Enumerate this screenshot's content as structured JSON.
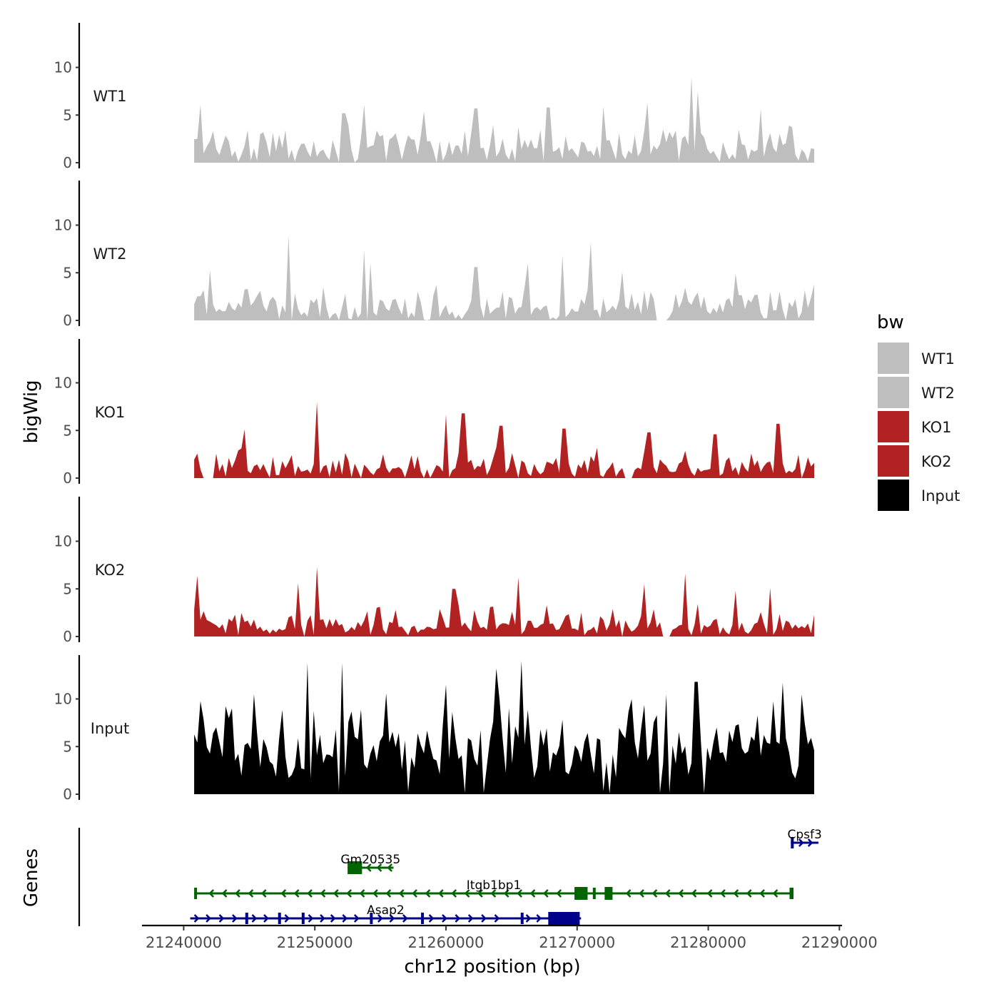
{
  "chart_data": {
    "type": "area",
    "title": "",
    "xlabel": "chr12 position (bp)",
    "ylabel": "bigWig",
    "genes_label": "Genes",
    "xlim": [
      21238400,
      21290200
    ],
    "x_ticks": [
      21240000,
      21250000,
      21260000,
      21270000,
      21280000,
      21290000
    ],
    "x_tick_labels": [
      "21240000",
      "21250000",
      "21260000",
      "21270000",
      "21280000",
      "21290000"
    ],
    "ylim": [
      0,
      15
    ],
    "y_ticks": [
      0,
      5,
      10
    ],
    "y_tick_labels": [
      "0",
      "5",
      "10"
    ],
    "track_start": 21240800,
    "track_end": 21288200,
    "bin_size": 240,
    "legend": {
      "title": "bw",
      "position": "right",
      "entries": [
        {
          "label": "WT1",
          "color": "#bebebe"
        },
        {
          "label": "WT2",
          "color": "#bebebe"
        },
        {
          "label": "KO1",
          "color": "#b22222"
        },
        {
          "label": "KO2",
          "color": "#b22222"
        },
        {
          "label": "Input",
          "color": "#000000"
        }
      ]
    },
    "series": [
      {
        "name": "WT1",
        "color": "#bebebe",
        "peaks": [
          [
            21241300,
            6.1
          ],
          [
            21244900,
            3.4
          ],
          [
            21252200,
            5.2
          ],
          [
            21253800,
            6.1
          ],
          [
            21258300,
            5.4
          ],
          [
            21262300,
            5.7
          ],
          [
            21267800,
            5.8
          ],
          [
            21272000,
            5.9
          ],
          [
            21275400,
            6.3
          ],
          [
            21278700,
            9.0
          ],
          [
            21279200,
            7.5
          ],
          [
            21284000,
            5.6
          ],
          [
            21286400,
            3.7
          ]
        ],
        "baseline": 1.2,
        "noise": 2.6,
        "gaps": []
      },
      {
        "name": "WT2",
        "color": "#bebebe",
        "peaks": [
          [
            21242000,
            5.3
          ],
          [
            21248000,
            8.9
          ],
          [
            21253700,
            7.4
          ],
          [
            21254300,
            6.0
          ],
          [
            21262300,
            5.6
          ],
          [
            21266200,
            6.0
          ],
          [
            21268800,
            6.8
          ],
          [
            21271000,
            8.2
          ],
          [
            21273400,
            5.1
          ],
          [
            21282100,
            4.9
          ],
          [
            21288000,
            3.8
          ]
        ],
        "baseline": 1.1,
        "noise": 2.4,
        "gaps": [
          [
            21258400,
            21258600
          ],
          [
            21276000,
            21276800
          ],
          [
            21285800,
            21286000
          ]
        ]
      },
      {
        "name": "KO1",
        "color": "#b22222",
        "peaks": [
          [
            21244600,
            5.1
          ],
          [
            21250100,
            8.0
          ],
          [
            21260000,
            6.7
          ],
          [
            21261300,
            6.8
          ],
          [
            21264200,
            5.5
          ],
          [
            21269000,
            5.2
          ],
          [
            21275500,
            4.8
          ],
          [
            21280500,
            4.6
          ],
          [
            21285300,
            5.7
          ]
        ],
        "baseline": 0.8,
        "noise": 2.3,
        "gaps": [
          [
            21241300,
            21242400
          ],
          [
            21256500,
            21256600
          ],
          [
            21273500,
            21274300
          ],
          [
            21287100,
            21287200
          ]
        ]
      },
      {
        "name": "KO2",
        "color": "#b22222",
        "peaks": [
          [
            21241000,
            6.4
          ],
          [
            21248800,
            5.6
          ],
          [
            21250100,
            7.3
          ],
          [
            21260600,
            5.0
          ],
          [
            21265600,
            6.2
          ],
          [
            21275100,
            5.5
          ],
          [
            21278200,
            6.6
          ],
          [
            21282000,
            4.8
          ],
          [
            21284800,
            5.1
          ]
        ],
        "baseline": 1.0,
        "noise": 2.5,
        "gaps": [
          [
            21242500,
            21242700
          ],
          [
            21249200,
            21249400
          ],
          [
            21273300,
            21273500
          ],
          [
            21276500,
            21277200
          ]
        ]
      },
      {
        "name": "Input",
        "color": "#000000",
        "peaks": [
          [
            21243600,
            9.0
          ],
          [
            21245300,
            10.5
          ],
          [
            21249500,
            13.8
          ],
          [
            21252000,
            13.8
          ],
          [
            21255400,
            10.6
          ],
          [
            21260000,
            11.5
          ],
          [
            21263800,
            13.2
          ],
          [
            21265700,
            14.0
          ],
          [
            21279100,
            11.8
          ],
          [
            21285600,
            11.7
          ]
        ],
        "baseline": 4.6,
        "noise": 5.5,
        "gaps": []
      }
    ],
    "genes": [
      {
        "name": "Cpsf3",
        "start": 21286300,
        "end": 21288400,
        "strand": "+",
        "color": "#00008b",
        "row": 3,
        "exons": [
          [
            21286300,
            21286500
          ]
        ],
        "introns_marks": [
          21287200,
          21287900
        ]
      },
      {
        "name": "Gm20535",
        "start": 21252500,
        "end": 21256000,
        "strand": "-",
        "color": "#006400",
        "row": 2,
        "exons": [
          [
            21252500,
            21253600
          ]
        ],
        "introns_marks": [
          21254000,
          21254800,
          21255600
        ]
      },
      {
        "name": "Itgb1bp1",
        "start": 21240800,
        "end": 21286500,
        "strand": "-",
        "color": "#006400",
        "row": 1,
        "exons": [
          [
            21240800,
            21241000
          ],
          [
            21269800,
            21270800
          ],
          [
            21271200,
            21271400
          ],
          [
            21272100,
            21272700
          ],
          [
            21286200,
            21286500
          ]
        ],
        "introns_marks": [
          21242000,
          21243000,
          21244000,
          21245000,
          21246000,
          21247500,
          21248500,
          21249500,
          21250500,
          21251500,
          21252500,
          21253500,
          21254500,
          21255500,
          21256500,
          21257500,
          21258500,
          21259500,
          21260500,
          21261500,
          21262500,
          21263500,
          21264500,
          21265500,
          21266500,
          21267500,
          21268500,
          21273800,
          21274800,
          21275800,
          21276800,
          21277800,
          21278800,
          21280000,
          21281000,
          21282000,
          21283000,
          21284000,
          21285000
        ]
      },
      {
        "name": "Asap2",
        "start": 21240500,
        "end": 21270300,
        "strand": "+",
        "color": "#00008b",
        "row": 0,
        "exons": [
          [
            21244700,
            21244800
          ],
          [
            21247200,
            21247300
          ],
          [
            21249000,
            21249100
          ],
          [
            21254200,
            21254400
          ],
          [
            21258100,
            21258200
          ],
          [
            21265700,
            21265800
          ],
          [
            21267800,
            21270200
          ]
        ],
        "introns_marks": [
          21241100,
          21242000,
          21243000,
          21244000,
          21245500,
          21246400,
          21248000,
          21249800,
          21250700,
          21251500,
          21252400,
          21253300,
          21255100,
          21256000,
          21257000,
          21259000,
          21260000,
          21261000,
          21262000,
          21263000,
          21264000,
          21266400,
          21267200
        ]
      }
    ]
  }
}
